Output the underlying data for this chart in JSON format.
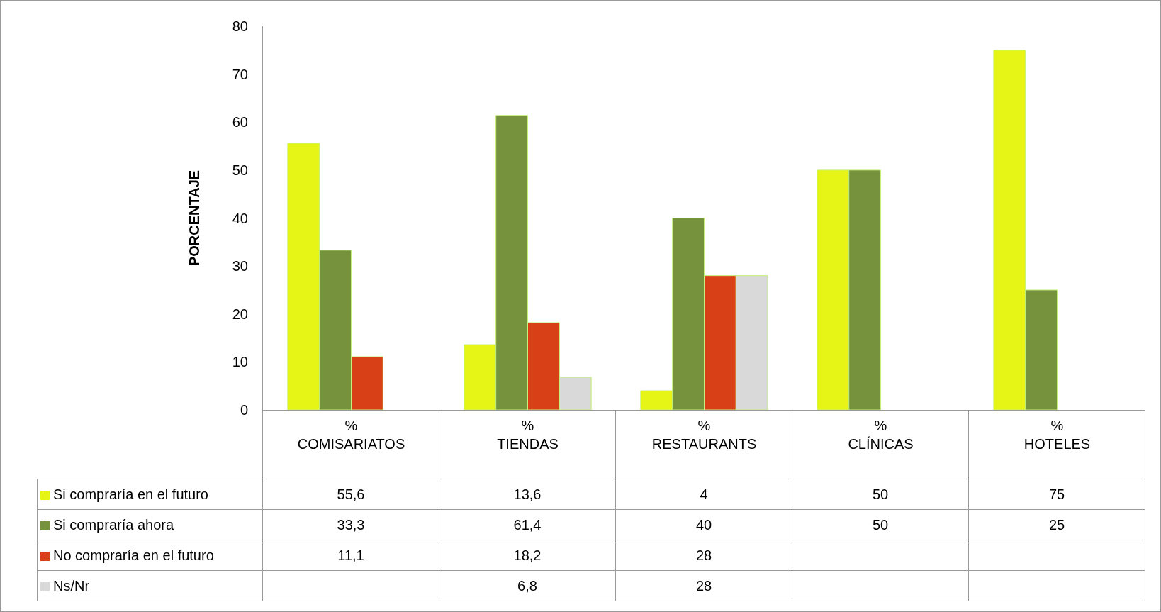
{
  "chart_data": {
    "type": "bar",
    "ylabel": "PORCENTAJE",
    "categories": [
      "%\nCOMISARIATOS",
      "%\nTIENDAS",
      "%\nRESTAURANTS",
      "%\nCLÍNICAS",
      "%\nHOTELES"
    ],
    "series": [
      {
        "name": "Si compraría en el futuro",
        "color": "#e6f516",
        "values": [
          55.6,
          13.6,
          4,
          50,
          75
        ],
        "value_labels": [
          "55,6",
          "13,6",
          "4",
          "50",
          "75"
        ]
      },
      {
        "name": "Si compraría ahora",
        "color": "#76923c",
        "values": [
          33.3,
          61.4,
          40,
          50,
          25
        ],
        "value_labels": [
          "33,3",
          "61,4",
          "40",
          "50",
          "25"
        ]
      },
      {
        "name": "No compraría en el futuro",
        "color": "#d84018",
        "values": [
          11.1,
          18.2,
          28,
          null,
          null
        ],
        "value_labels": [
          "11,1",
          "18,2",
          "28",
          null,
          null
        ]
      },
      {
        "name": "Ns/Nr",
        "color": "#d9d9d9",
        "values": [
          null,
          6.8,
          28,
          null,
          null
        ],
        "value_labels": [
          null,
          "6,8",
          "28",
          null,
          null
        ]
      }
    ],
    "ylim": [
      0,
      80
    ],
    "yticks": [
      0,
      10,
      20,
      30,
      40,
      50,
      60,
      70,
      80
    ],
    "grid": false,
    "legend": "bottom left"
  }
}
